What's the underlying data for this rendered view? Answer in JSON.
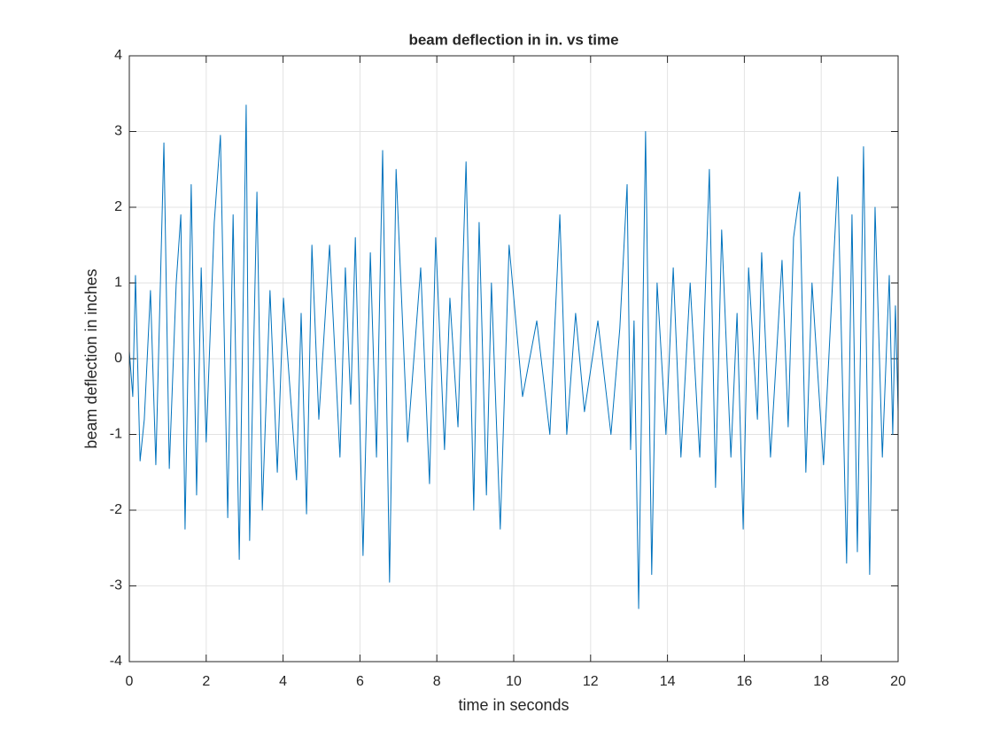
{
  "chart_data": {
    "type": "line",
    "title": "beam deflection in in. vs time",
    "xlabel": "time in seconds",
    "ylabel": "beam deflection in inches",
    "x": [
      0,
      0.09,
      0.16,
      0.28,
      0.39,
      0.55,
      0.69,
      0.9,
      1.04,
      1.22,
      1.34,
      1.45,
      1.61,
      1.75,
      1.87,
      2.0,
      2.21,
      2.37,
      2.56,
      2.7,
      2.86,
      3.04,
      3.13,
      3.32,
      3.46,
      3.66,
      3.85,
      4.01,
      4.35,
      4.47,
      4.61,
      4.75,
      4.93,
      5.21,
      5.48,
      5.62,
      5.76,
      5.88,
      6.08,
      6.27,
      6.43,
      6.59,
      6.77,
      6.94,
      7.24,
      7.58,
      7.81,
      7.97,
      8.2,
      8.34,
      8.55,
      8.76,
      8.96,
      9.1,
      9.29,
      9.42,
      9.65,
      9.88,
      10.23,
      10.6,
      10.94,
      11.2,
      11.38,
      11.61,
      11.84,
      12.19,
      12.53,
      12.76,
      12.95,
      13.04,
      13.13,
      13.25,
      13.43,
      13.59,
      13.73,
      13.96,
      14.15,
      14.35,
      14.59,
      14.84,
      15.09,
      15.25,
      15.41,
      15.65,
      15.81,
      15.97,
      16.11,
      16.34,
      16.45,
      16.68,
      16.98,
      17.14,
      17.28,
      17.44,
      17.6,
      17.76,
      18.06,
      18.43,
      18.66,
      18.8,
      18.94,
      19.1,
      19.26,
      19.4,
      19.59,
      19.77,
      19.86,
      19.93,
      20
    ],
    "series": [
      {
        "color": "#0072bd",
        "values": [
          0.1,
          -0.5,
          1.1,
          -1.35,
          -0.8,
          0.9,
          -1.4,
          2.85,
          -1.45,
          1.0,
          1.9,
          -2.25,
          2.3,
          -1.8,
          1.2,
          -1.1,
          1.8,
          2.95,
          -2.1,
          1.9,
          -2.65,
          3.35,
          -2.4,
          2.2,
          -2.0,
          0.9,
          -1.5,
          0.8,
          -1.6,
          0.6,
          -2.05,
          1.5,
          -0.8,
          1.5,
          -1.3,
          1.2,
          -0.6,
          1.6,
          -2.6,
          1.4,
          -1.3,
          2.75,
          -2.95,
          2.5,
          -1.1,
          1.2,
          -1.65,
          1.6,
          -1.2,
          0.8,
          -0.9,
          2.6,
          -2.0,
          1.8,
          -1.8,
          1.0,
          -2.25,
          1.5,
          -0.5,
          0.5,
          -1.0,
          1.9,
          -1.0,
          0.6,
          -0.7,
          0.5,
          -1.0,
          0.4,
          2.3,
          -1.2,
          0.5,
          -3.3,
          3.0,
          -2.85,
          1.0,
          -1.0,
          1.2,
          -1.3,
          1.0,
          -1.3,
          2.5,
          -1.7,
          1.7,
          -1.3,
          0.6,
          -2.25,
          1.2,
          -0.8,
          1.4,
          -1.3,
          1.3,
          -0.9,
          1.6,
          2.2,
          -1.5,
          1.0,
          -1.4,
          2.4,
          -2.7,
          1.9,
          -2.55,
          2.8,
          -2.85,
          2.0,
          -1.3,
          1.1,
          -1.0,
          0.7,
          -0.7
        ]
      }
    ],
    "xlim": [
      0,
      20
    ],
    "xticks": [
      0,
      2,
      4,
      6,
      8,
      10,
      12,
      14,
      16,
      18,
      20
    ],
    "ylim": [
      -4,
      4
    ],
    "yticks": [
      -4,
      -3,
      -2,
      -1,
      0,
      1,
      2,
      3,
      4
    ],
    "grid": true
  }
}
